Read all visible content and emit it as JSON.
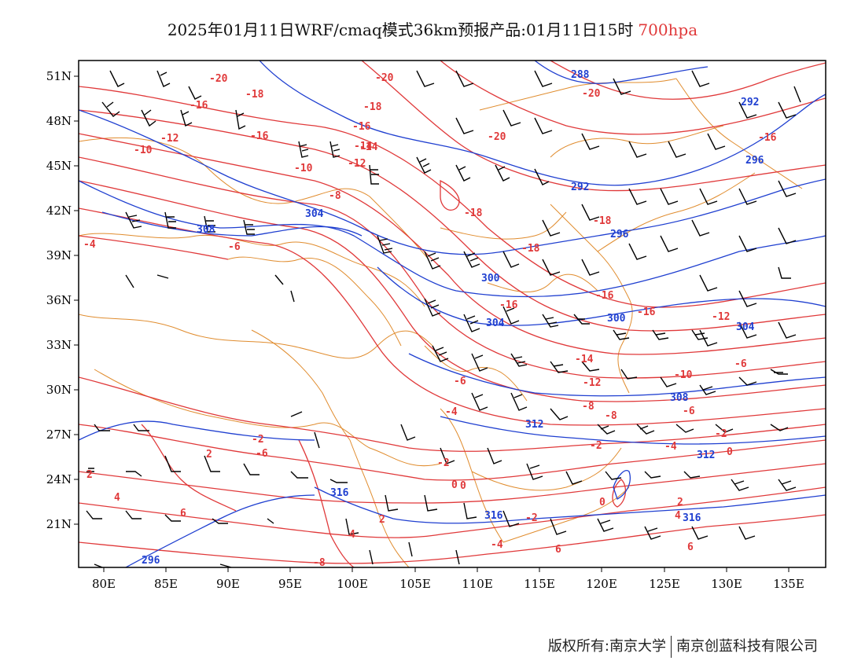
{
  "title": {
    "main": "2025年01月11日WRF/cmaq模式36km预报产品:01月11日15时",
    "level": "700hpa"
  },
  "colors": {
    "temperature": "#e0393a",
    "height": "#1f3fd0",
    "border": "#e08c2e",
    "wind": "#000000"
  },
  "map": {
    "lon_labels": [
      "80E",
      "85E",
      "90E",
      "95E",
      "100E",
      "105E",
      "110E",
      "115E",
      "120E",
      "125E",
      "130E",
      "135E"
    ],
    "lat_labels": [
      "51N",
      "48N",
      "45N",
      "42N",
      "39N",
      "36N",
      "33N",
      "30N",
      "27N",
      "24N",
      "21N"
    ],
    "temp_labels": [
      "-20",
      "-18",
      "-16",
      "-16",
      "-14",
      "-12",
      "-10",
      "-8",
      "-6",
      "-4",
      "-2",
      "0",
      "-18",
      "-20",
      "-20",
      "-16",
      "-18",
      "-18",
      "-16",
      "-16",
      "-14",
      "-12",
      "-12",
      "-10",
      "-8",
      "-6",
      "-6",
      "-4",
      "-2",
      "-2",
      "0",
      "-14",
      "-16",
      "-18",
      "-20",
      "-16",
      "-12",
      "-10",
      "-8",
      "-6",
      "-6",
      "-4",
      "-2",
      "0",
      "2",
      "4",
      "6",
      "2",
      "4",
      "2",
      "0",
      "-4",
      "-2",
      "-8",
      "6",
      "2",
      "4",
      "6"
    ],
    "height_labels": [
      "288",
      "292",
      "296",
      "292",
      "296",
      "300",
      "304",
      "308",
      "304",
      "300",
      "304",
      "308",
      "312",
      "316",
      "312",
      "316",
      "316",
      "296"
    ]
  },
  "footer": {
    "left": "版权所有:南京大学",
    "right": "南京创蓝科技有限公司"
  }
}
